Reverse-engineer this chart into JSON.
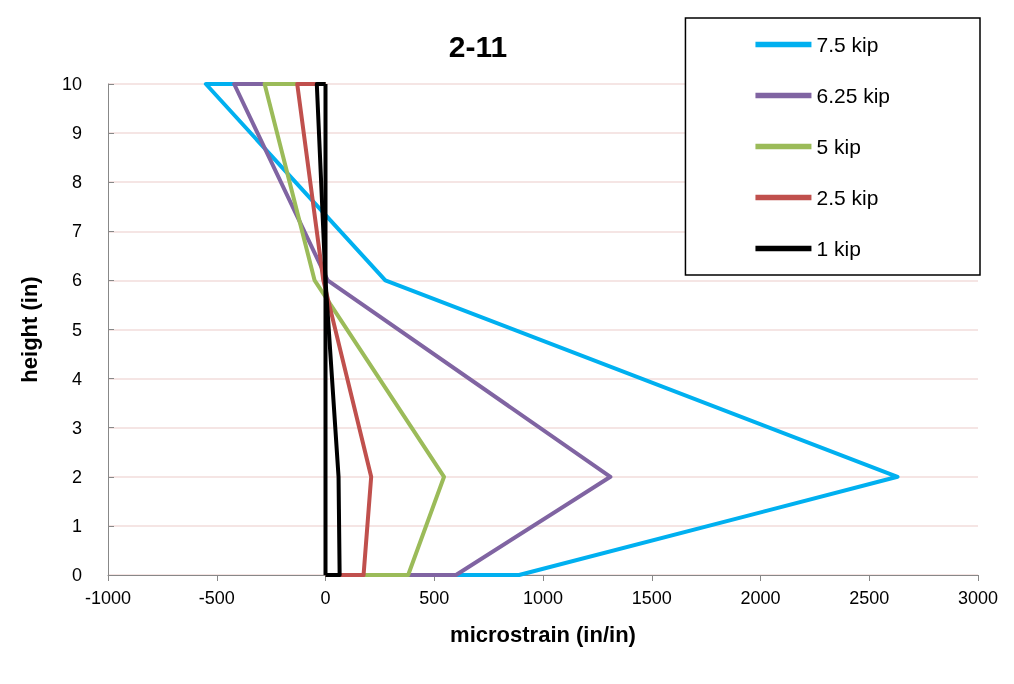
{
  "chart_data": {
    "type": "line",
    "title": "2-11",
    "xlabel": "microstrain (in/in)",
    "ylabel": "height (in)",
    "xlim": [
      -1000,
      3000
    ],
    "xticks": [
      -1000,
      -500,
      0,
      500,
      1000,
      1500,
      2000,
      2500,
      3000
    ],
    "ylim": [
      0,
      10
    ],
    "yticks": [
      0,
      1,
      2,
      3,
      4,
      5,
      6,
      7,
      8,
      9,
      10
    ],
    "grid": "y",
    "legend": "top right",
    "marker": "none",
    "line_style": "solid",
    "series": [
      {
        "name": "7.5 kip",
        "color": "#00b0f0",
        "x": [
          0,
          890,
          2630,
          275,
          -550,
          0
        ],
        "values": [
          0,
          0,
          2,
          6,
          10,
          10
        ]
      },
      {
        "name": "6.25 kip",
        "color": "#8064a2",
        "x": [
          0,
          600,
          1310,
          10,
          -420,
          0
        ],
        "values": [
          0,
          0,
          2,
          6,
          10,
          10
        ]
      },
      {
        "name": "5 kip",
        "color": "#9bbb59",
        "x": [
          0,
          380,
          545,
          -50,
          -280,
          0
        ],
        "values": [
          0,
          0,
          2,
          6,
          10,
          10
        ]
      },
      {
        "name": "2.5 kip",
        "color": "#c0504d",
        "x": [
          0,
          175,
          210,
          -10,
          -130,
          0
        ],
        "values": [
          0,
          0,
          2,
          6,
          10,
          10
        ]
      },
      {
        "name": "1 kip",
        "color": "#000000",
        "x": [
          0,
          65,
          60,
          0,
          -40,
          0
        ],
        "values": [
          0,
          0,
          2,
          6,
          10,
          10
        ]
      }
    ],
    "ref_lines": [
      {
        "axis": "x",
        "value": 0,
        "color": "#000000",
        "line_style": "solid"
      }
    ]
  }
}
